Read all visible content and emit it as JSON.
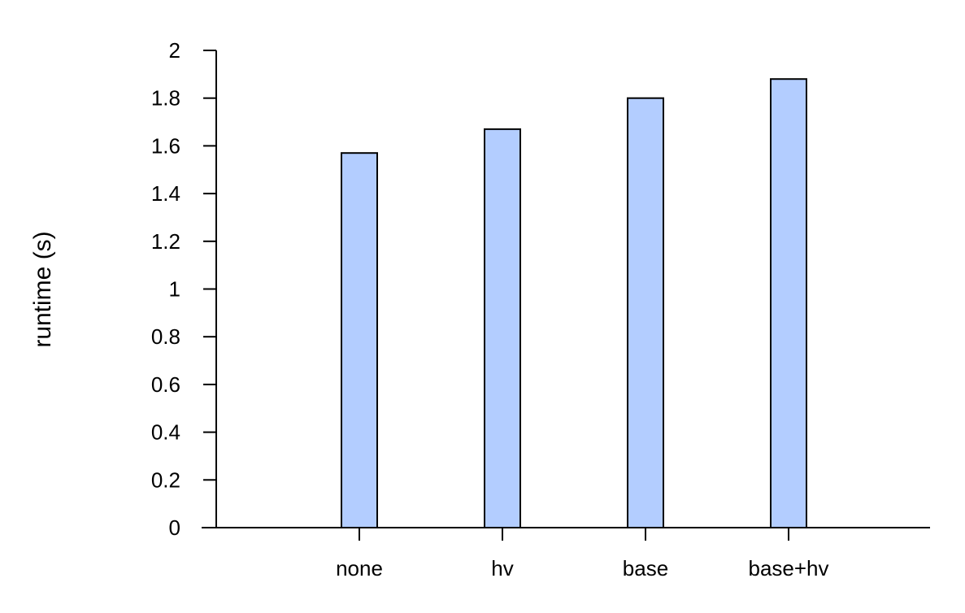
{
  "chart_data": {
    "type": "bar",
    "title": "",
    "xlabel": "",
    "ylabel": "runtime (s)",
    "categories": [
      "none",
      "hv",
      "base",
      "base+hv"
    ],
    "values": [
      1.57,
      1.67,
      1.8,
      1.88
    ],
    "ylim": [
      0,
      2
    ],
    "yticks": [
      0,
      0.2,
      0.4,
      0.6,
      0.8,
      1,
      1.2,
      1.4,
      1.6,
      1.8,
      2
    ],
    "ytick_labels": [
      "0",
      "0.2",
      "0.4",
      "0.6",
      "0.8",
      "1",
      "1.2",
      "1.4",
      "1.6",
      "1.8",
      "2"
    ],
    "grid": false,
    "legend": "none",
    "bar_color": "#b3cdff",
    "edge_color": "#000000"
  }
}
